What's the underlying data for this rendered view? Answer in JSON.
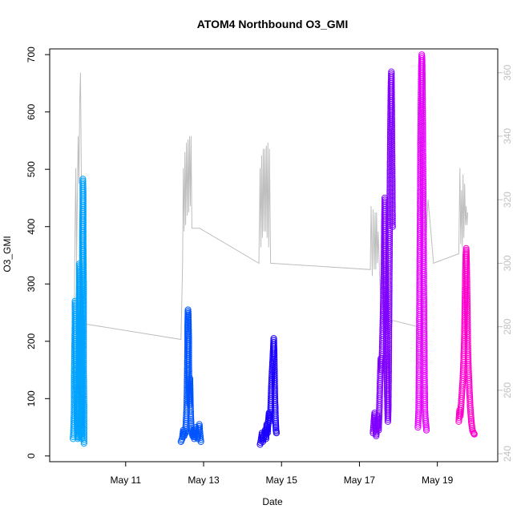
{
  "chart_data": {
    "type": "scatter",
    "title": "ATOM4 Northbound O3_GMI",
    "xlabel": "Date",
    "ylabel": "O3_GMI",
    "x_ticks": [
      "May 11",
      "May 13",
      "May 15",
      "May 17",
      "May 19"
    ],
    "x_tick_days": [
      11,
      13,
      15,
      17,
      19
    ],
    "xlim_days": [
      9.05,
      20.55
    ],
    "ylim": [
      -10,
      710
    ],
    "y_ticks": [
      0,
      100,
      200,
      300,
      400,
      500,
      600,
      700
    ],
    "y_right_ticks": [
      240,
      260,
      280,
      300,
      320,
      340,
      360
    ],
    "y_right_lim": [
      237.5,
      367.5
    ],
    "colors": {
      "frame": "#000000",
      "right_axis": "#c0c0c0",
      "line": "#bebebe"
    },
    "series": [
      {
        "color": "#00a2ff",
        "x_day_range": [
          9.65,
          9.93
        ],
        "y_min": 20,
        "y_max": 485,
        "points": [
          [
            9.65,
            30
          ],
          [
            9.66,
            40
          ],
          [
            9.67,
            60
          ],
          [
            9.68,
            90
          ],
          [
            9.68,
            140
          ],
          [
            9.69,
            190
          ],
          [
            9.7,
            240
          ],
          [
            9.7,
            270
          ],
          [
            9.71,
            250
          ],
          [
            9.72,
            200
          ],
          [
            9.73,
            150
          ],
          [
            9.74,
            100
          ],
          [
            9.75,
            60
          ],
          [
            9.76,
            40
          ],
          [
            9.77,
            30
          ],
          [
            9.78,
            35
          ],
          [
            9.79,
            55
          ],
          [
            9.8,
            180
          ],
          [
            9.8,
            250
          ],
          [
            9.81,
            310
          ],
          [
            9.81,
            335
          ],
          [
            9.82,
            320
          ],
          [
            9.83,
            280
          ],
          [
            9.84,
            240
          ],
          [
            9.84,
            200
          ],
          [
            9.85,
            160
          ],
          [
            9.86,
            120
          ],
          [
            9.86,
            80
          ],
          [
            9.87,
            50
          ],
          [
            9.87,
            30
          ],
          [
            9.88,
            110
          ],
          [
            9.88,
            190
          ],
          [
            9.89,
            260
          ],
          [
            9.89,
            330
          ],
          [
            9.89,
            390
          ],
          [
            9.9,
            440
          ],
          [
            9.9,
            470
          ],
          [
            9.9,
            483
          ],
          [
            9.91,
            460
          ],
          [
            9.91,
            420
          ],
          [
            9.91,
            370
          ],
          [
            9.92,
            300
          ],
          [
            9.92,
            220
          ],
          [
            9.92,
            150
          ],
          [
            9.93,
            90
          ],
          [
            9.93,
            50
          ],
          [
            9.93,
            28
          ],
          [
            9.93,
            22
          ]
        ]
      },
      {
        "color": "#0054ff",
        "x_day_range": [
          12.42,
          12.93
        ],
        "y_min": 20,
        "y_max": 255,
        "points": [
          [
            12.42,
            25
          ],
          [
            12.45,
            30
          ],
          [
            12.48,
            45
          ],
          [
            12.5,
            35
          ],
          [
            12.53,
            40
          ],
          [
            12.55,
            60
          ],
          [
            12.57,
            90
          ],
          [
            12.58,
            140
          ],
          [
            12.59,
            190
          ],
          [
            12.59,
            225
          ],
          [
            12.6,
            255
          ],
          [
            12.61,
            240
          ],
          [
            12.62,
            200
          ],
          [
            12.62,
            160
          ],
          [
            12.63,
            120
          ],
          [
            12.64,
            90
          ],
          [
            12.65,
            135
          ],
          [
            12.66,
            100
          ],
          [
            12.67,
            70
          ],
          [
            12.68,
            55
          ],
          [
            12.7,
            40
          ],
          [
            12.72,
            35
          ],
          [
            12.74,
            45
          ],
          [
            12.76,
            30
          ],
          [
            12.78,
            40
          ],
          [
            12.8,
            50
          ],
          [
            12.82,
            35
          ],
          [
            12.85,
            30
          ],
          [
            12.87,
            45
          ],
          [
            12.89,
            55
          ],
          [
            12.91,
            38
          ],
          [
            12.93,
            25
          ]
        ]
      },
      {
        "color": "#1a00ff",
        "x_day_range": [
          14.45,
          14.87
        ],
        "y_min": 15,
        "y_max": 205,
        "points": [
          [
            14.45,
            20
          ],
          [
            14.48,
            30
          ],
          [
            14.5,
            40
          ],
          [
            14.52,
            25
          ],
          [
            14.55,
            35
          ],
          [
            14.58,
            45
          ],
          [
            14.6,
            30
          ],
          [
            14.62,
            55
          ],
          [
            14.64,
            40
          ],
          [
            14.66,
            60
          ],
          [
            14.68,
            75
          ],
          [
            14.7,
            60
          ],
          [
            14.72,
            80
          ],
          [
            14.74,
            120
          ],
          [
            14.76,
            150
          ],
          [
            14.78,
            175
          ],
          [
            14.8,
            205
          ],
          [
            14.81,
            185
          ],
          [
            14.82,
            140
          ],
          [
            14.83,
            100
          ],
          [
            14.84,
            80
          ],
          [
            14.85,
            60
          ],
          [
            14.86,
            45
          ],
          [
            14.87,
            40
          ]
        ]
      },
      {
        "color": "#8000ff",
        "x_day_range": [
          17.35,
          17.85
        ],
        "y_min": 25,
        "y_max": 670,
        "points": [
          [
            17.35,
            40
          ],
          [
            17.37,
            60
          ],
          [
            17.39,
            75
          ],
          [
            17.41,
            50
          ],
          [
            17.43,
            35
          ],
          [
            17.45,
            60
          ],
          [
            17.47,
            70
          ],
          [
            17.49,
            45
          ],
          [
            17.51,
            80
          ],
          [
            17.53,
            130
          ],
          [
            17.55,
            170
          ],
          [
            17.57,
            150
          ],
          [
            17.59,
            200
          ],
          [
            17.61,
            260
          ],
          [
            17.63,
            330
          ],
          [
            17.64,
            400
          ],
          [
            17.65,
            450
          ],
          [
            17.66,
            380
          ],
          [
            17.67,
            320
          ],
          [
            17.68,
            260
          ],
          [
            17.69,
            200
          ],
          [
            17.7,
            160
          ],
          [
            17.71,
            120
          ],
          [
            17.72,
            90
          ],
          [
            17.73,
            60
          ],
          [
            17.74,
            80
          ],
          [
            17.75,
            150
          ],
          [
            17.76,
            250
          ],
          [
            17.77,
            350
          ],
          [
            17.78,
            450
          ],
          [
            17.79,
            530
          ],
          [
            17.8,
            600
          ],
          [
            17.81,
            650
          ],
          [
            17.82,
            670
          ],
          [
            17.83,
            600
          ],
          [
            17.84,
            500
          ],
          [
            17.85,
            400
          ]
        ]
      },
      {
        "color": "#e600ff",
        "x_day_range": [
          18.5,
          18.72
        ],
        "y_min": 40,
        "y_max": 700,
        "points": [
          [
            18.5,
            50
          ],
          [
            18.52,
            80
          ],
          [
            18.53,
            150
          ],
          [
            18.54,
            250
          ],
          [
            18.55,
            350
          ],
          [
            18.56,
            450
          ],
          [
            18.57,
            550
          ],
          [
            18.58,
            620
          ],
          [
            18.59,
            680
          ],
          [
            18.6,
            700
          ],
          [
            18.61,
            690
          ],
          [
            18.62,
            620
          ],
          [
            18.63,
            520
          ],
          [
            18.64,
            420
          ],
          [
            18.65,
            320
          ],
          [
            18.66,
            220
          ],
          [
            18.67,
            140
          ],
          [
            18.68,
            80
          ],
          [
            18.7,
            60
          ],
          [
            18.72,
            45
          ]
        ]
      },
      {
        "color": "#ff00cc",
        "x_day_range": [
          19.55,
          19.95
        ],
        "y_min": 35,
        "y_max": 362,
        "points": [
          [
            19.55,
            60
          ],
          [
            19.57,
            80
          ],
          [
            19.59,
            70
          ],
          [
            19.61,
            90
          ],
          [
            19.63,
            110
          ],
          [
            19.65,
            130
          ],
          [
            19.67,
            160
          ],
          [
            19.69,
            200
          ],
          [
            19.7,
            240
          ],
          [
            19.71,
            280
          ],
          [
            19.72,
            320
          ],
          [
            19.73,
            350
          ],
          [
            19.74,
            362
          ],
          [
            19.75,
            340
          ],
          [
            19.76,
            300
          ],
          [
            19.77,
            250
          ],
          [
            19.78,
            200
          ],
          [
            19.79,
            170
          ],
          [
            19.8,
            150
          ],
          [
            19.82,
            120
          ],
          [
            19.84,
            90
          ],
          [
            19.86,
            70
          ],
          [
            19.88,
            55
          ],
          [
            19.9,
            45
          ],
          [
            19.93,
            40
          ],
          [
            19.95,
            38
          ]
        ]
      }
    ],
    "line_series": {
      "color": "#bebebe",
      "axis": "right",
      "points": [
        [
          9.65,
          260
        ],
        [
          9.68,
          280
        ],
        [
          9.7,
          310
        ],
        [
          9.72,
          330
        ],
        [
          9.74,
          300
        ],
        [
          9.76,
          320
        ],
        [
          9.78,
          340
        ],
        [
          9.8,
          325
        ],
        [
          9.82,
          350
        ],
        [
          9.84,
          360
        ],
        [
          9.86,
          330
        ],
        [
          9.88,
          300
        ],
        [
          9.9,
          281
        ],
        [
          12.42,
          276
        ],
        [
          12.46,
          300
        ],
        [
          12.48,
          330
        ],
        [
          12.5,
          310
        ],
        [
          12.52,
          335
        ],
        [
          12.54,
          312
        ],
        [
          12.56,
          338
        ],
        [
          12.58,
          315
        ],
        [
          12.6,
          339
        ],
        [
          12.62,
          316
        ],
        [
          12.64,
          340
        ],
        [
          12.66,
          318
        ],
        [
          12.68,
          340
        ],
        [
          12.7,
          311
        ],
        [
          12.9,
          311
        ],
        [
          14.42,
          300
        ],
        [
          14.45,
          330
        ],
        [
          14.47,
          305
        ],
        [
          14.49,
          334
        ],
        [
          14.51,
          308
        ],
        [
          14.53,
          336
        ],
        [
          14.55,
          310
        ],
        [
          14.57,
          336
        ],
        [
          14.59,
          310
        ],
        [
          14.61,
          337
        ],
        [
          14.63,
          308
        ],
        [
          14.65,
          338
        ],
        [
          14.67,
          305
        ],
        [
          14.69,
          336
        ],
        [
          14.72,
          300
        ],
        [
          17.28,
          298
        ],
        [
          17.3,
          318
        ],
        [
          17.33,
          296
        ],
        [
          17.35,
          317
        ],
        [
          17.38,
          298
        ],
        [
          17.4,
          316
        ],
        [
          17.42,
          298
        ],
        [
          17.44,
          316
        ],
        [
          17.46,
          300
        ],
        [
          17.48,
          310
        ],
        [
          17.55,
          285
        ],
        [
          17.7,
          275
        ],
        [
          17.85,
          282
        ],
        [
          18.5,
          280
        ],
        [
          18.6,
          270
        ],
        [
          18.68,
          300
        ],
        [
          18.76,
          320
        ],
        [
          18.82,
          312
        ],
        [
          18.9,
          300
        ],
        [
          19.55,
          303
        ],
        [
          19.58,
          330
        ],
        [
          19.6,
          306
        ],
        [
          19.62,
          323
        ],
        [
          19.64,
          305
        ],
        [
          19.66,
          328
        ],
        [
          19.68,
          308
        ],
        [
          19.7,
          325
        ],
        [
          19.72,
          312
        ],
        [
          19.74,
          318
        ],
        [
          19.76,
          312
        ],
        [
          19.78,
          316
        ]
      ]
    }
  }
}
